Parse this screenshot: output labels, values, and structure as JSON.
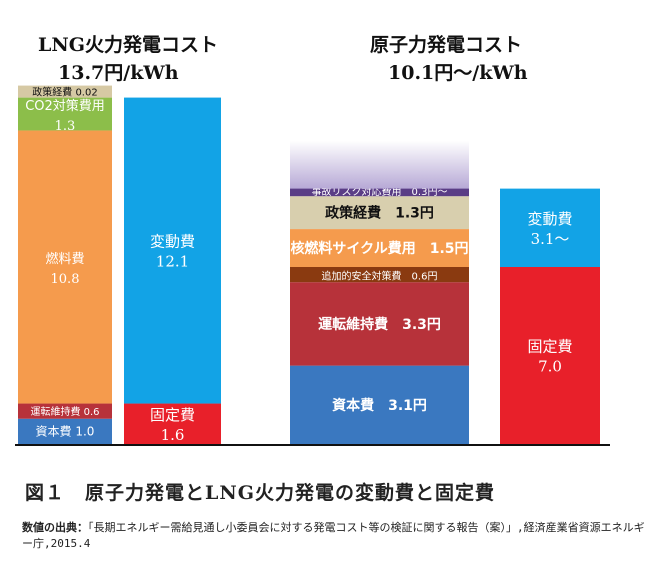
{
  "headings": {
    "lng_title": "LNG火力発電コスト",
    "lng_cost": "13.7円/kWh",
    "nuc_title": "原子力発電コスト",
    "nuc_cost": "10.1円～/kWh"
  },
  "caption": "図１　原子力発電とLNG火力発電の変動費と固定費",
  "source": {
    "label": "数値の出典：",
    "text": "「長期エネルギー需給見通し小委員会に対する発電コスト等の検証に関する報告（案）」,経済産業省資源エネルギー庁,2015.4"
  },
  "chart_data": {
    "type": "stacked-bar",
    "bars": [
      {
        "name": "LNG火力 内訳",
        "segments": [
          {
            "label": "資本費",
            "value_text": "1.0",
            "value": 1.0,
            "color": "#3a78c0"
          },
          {
            "label": "運転維持費",
            "value_text": "0.6",
            "value": 0.6,
            "color": "#b7323a"
          },
          {
            "label": "燃料費",
            "value_text": "10.8",
            "value": 10.8,
            "color": "#f59b4d"
          },
          {
            "label": "CO2対策費用",
            "value_text": "1.3",
            "value": 1.3,
            "color": "#8cbe4a"
          },
          {
            "label": "政策経費",
            "value_text": "0.02",
            "value": 0.02,
            "color": "#d6c9a4"
          }
        ]
      },
      {
        "name": "LNG火力 固定費/変動費",
        "segments": [
          {
            "label": "固定費",
            "value_text": "1.6",
            "value": 1.6,
            "color": "#e8202a"
          },
          {
            "label": "変動費",
            "value_text": "12.1",
            "value": 12.1,
            "color": "#12a3e6"
          }
        ]
      },
      {
        "name": "原子力 内訳",
        "segments": [
          {
            "label": "資本費",
            "value_text": "3.1円",
            "value": 3.1,
            "color": "#3a78c0"
          },
          {
            "label": "運転維持費",
            "value_text": "3.3円",
            "value": 3.3,
            "color": "#b7323a"
          },
          {
            "label": "追加的安全対策費",
            "value_text": "0.6円",
            "value": 0.6,
            "color": "#8a3a10"
          },
          {
            "label": "核燃料サイクル費用",
            "value_text": "1.5円",
            "value": 1.5,
            "color": "#f59b4d"
          },
          {
            "label": "政策経費",
            "value_text": "1.3円",
            "value": 1.3,
            "color": "#d8cfae"
          },
          {
            "label": "事故リスク対応費用",
            "value_text": "0.3円～",
            "value": 0.3,
            "color": "#5a3d86"
          },
          {
            "label": "",
            "value_text": "",
            "value": 1.9,
            "color": "#c8bede",
            "fade": true
          }
        ]
      },
      {
        "name": "原子力 固定費/変動費",
        "segments": [
          {
            "label": "固定費",
            "value_text": "7.0",
            "value": 7.0,
            "color": "#e8202a"
          },
          {
            "label": "変動費",
            "value_text": "3.1～",
            "value": 3.1,
            "color": "#12a3e6"
          }
        ]
      }
    ],
    "ylim": [
      0,
      14.0
    ]
  }
}
